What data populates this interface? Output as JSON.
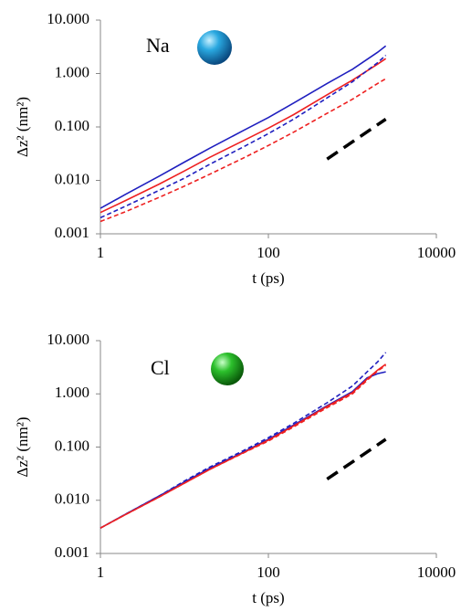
{
  "chart_data": [
    {
      "type": "line",
      "annotation": "Na",
      "ylabel": "Δz² (nm²)",
      "xlabel": "t (ps)",
      "log_x": true,
      "log_y": true,
      "xlim": [
        1,
        10000
      ],
      "xticks": [
        1,
        100,
        10000
      ],
      "ylim": [
        0.001,
        10
      ],
      "yticks": [
        {
          "value": 10,
          "label": "10.000"
        },
        {
          "value": 1,
          "label": "1.000"
        },
        {
          "value": 0.1,
          "label": "0.100"
        },
        {
          "value": 0.01,
          "label": "0.010"
        },
        {
          "value": 0.001,
          "label": "0.001"
        }
      ],
      "x": [
        1,
        2,
        5,
        10,
        20,
        50,
        100,
        200,
        500,
        1000,
        2000,
        2500
      ],
      "series": [
        {
          "color": "#1f1fbf",
          "dashed": false,
          "values": [
            0.003,
            0.0055,
            0.012,
            0.022,
            0.04,
            0.085,
            0.15,
            0.28,
            0.65,
            1.2,
            2.5,
            3.3
          ]
        },
        {
          "color": "#ee2020",
          "dashed": false,
          "values": [
            0.0025,
            0.0042,
            0.0085,
            0.015,
            0.027,
            0.055,
            0.095,
            0.17,
            0.4,
            0.75,
            1.5,
            1.9
          ]
        },
        {
          "color": "#1f1fbf",
          "dashed": true,
          "values": [
            0.002,
            0.0033,
            0.0065,
            0.011,
            0.02,
            0.042,
            0.075,
            0.14,
            0.35,
            0.7,
            1.6,
            2.2
          ]
        },
        {
          "color": "#ee2020",
          "dashed": true,
          "values": [
            0.0017,
            0.0026,
            0.0048,
            0.0078,
            0.013,
            0.026,
            0.045,
            0.08,
            0.18,
            0.33,
            0.65,
            0.8
          ]
        },
        {
          "color": "#000000",
          "dashed": true,
          "x": [
            500,
            2500
          ],
          "values": [
            0.025,
            0.14
          ]
        }
      ]
    },
    {
      "type": "line",
      "annotation": "Cl",
      "ylabel": "Δz² (nm²)",
      "xlabel": "t (ps)",
      "log_x": true,
      "log_y": true,
      "xlim": [
        1,
        10000
      ],
      "xticks": [
        1,
        100,
        10000
      ],
      "ylim": [
        0.001,
        10
      ],
      "yticks": [
        {
          "value": 10,
          "label": "10.000"
        },
        {
          "value": 1,
          "label": "1.000"
        },
        {
          "value": 0.1,
          "label": "0.100"
        },
        {
          "value": 0.01,
          "label": "0.010"
        },
        {
          "value": 0.001,
          "label": "0.001"
        }
      ],
      "x": [
        1,
        2,
        5,
        10,
        20,
        50,
        100,
        200,
        500,
        1000,
        1500,
        2000,
        2500
      ],
      "series": [
        {
          "color": "#1f1fbf",
          "dashed": false,
          "values": [
            0.003,
            0.0055,
            0.012,
            0.022,
            0.04,
            0.08,
            0.14,
            0.26,
            0.6,
            1.1,
            2.0,
            2.4,
            2.6
          ]
        },
        {
          "color": "#1f1fbf",
          "dashed": true,
          "values": [
            0.003,
            0.0055,
            0.012,
            0.023,
            0.042,
            0.085,
            0.15,
            0.28,
            0.68,
            1.4,
            2.6,
            4,
            6
          ]
        },
        {
          "color": "#ee2020",
          "dashed": false,
          "values": [
            0.003,
            0.0054,
            0.0115,
            0.021,
            0.038,
            0.078,
            0.135,
            0.25,
            0.58,
            1.05,
            1.9,
            2.8,
            3.6
          ]
        },
        {
          "color": "#ee2020",
          "dashed": true,
          "values": [
            0.003,
            0.0054,
            0.0115,
            0.021,
            0.038,
            0.077,
            0.13,
            0.24,
            0.55,
            1.0,
            1.8,
            2.7,
            3.4
          ]
        },
        {
          "color": "#000000",
          "dashed": true,
          "x": [
            500,
            2500
          ],
          "values": [
            0.025,
            0.14
          ]
        }
      ]
    }
  ]
}
